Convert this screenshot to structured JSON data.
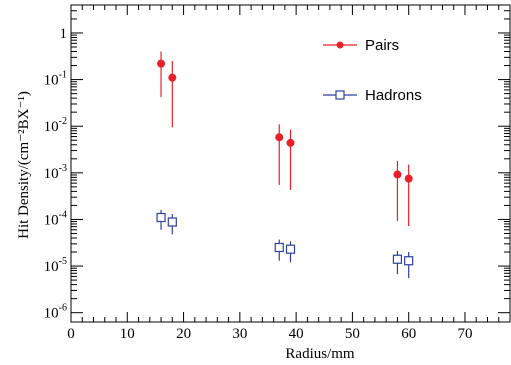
{
  "chart_data": {
    "type": "scatter",
    "xlabel": "Radius/mm",
    "ylabel": "Hit Density/(cm⁻²BX⁻¹)",
    "xlim": [
      0,
      78
    ],
    "ylim_log10": [
      -6.2,
      0.6
    ],
    "y_scale": "log",
    "grid": false,
    "legend_position": "top-right",
    "x_ticks": [
      0,
      10,
      20,
      30,
      40,
      50,
      60,
      70
    ],
    "y_ticks": [
      {
        "value": 1,
        "base": "1",
        "exp": ""
      },
      {
        "value": 0.1,
        "base": "10",
        "exp": "-1"
      },
      {
        "value": 0.01,
        "base": "10",
        "exp": "-2"
      },
      {
        "value": 0.001,
        "base": "10",
        "exp": "-3"
      },
      {
        "value": 0.0001,
        "base": "10",
        "exp": "-4"
      },
      {
        "value": 1e-05,
        "base": "10",
        "exp": "-5"
      },
      {
        "value": 1e-06,
        "base": "10",
        "exp": "-6"
      }
    ],
    "series": [
      {
        "name": "Pairs",
        "color": "#e8202a",
        "marker": "filled-circle",
        "points": [
          {
            "x": 16,
            "y": 0.22,
            "ylo": 0.042,
            "yhi": 0.4
          },
          {
            "x": 18,
            "y": 0.11,
            "ylo": 0.0095,
            "yhi": 0.25
          },
          {
            "x": 37,
            "y": 0.0058,
            "ylo": 0.00055,
            "yhi": 0.011
          },
          {
            "x": 39,
            "y": 0.0044,
            "ylo": 0.00043,
            "yhi": 0.0085
          },
          {
            "x": 58,
            "y": 0.00092,
            "ylo": 9.2e-05,
            "yhi": 0.0018
          },
          {
            "x": 60,
            "y": 0.00075,
            "ylo": 7.2e-05,
            "yhi": 0.0015
          }
        ]
      },
      {
        "name": "Hadrons",
        "color": "#2e3fa0",
        "marker": "open-square",
        "points": [
          {
            "x": 16,
            "y": 0.00011,
            "ylo": 6e-05,
            "yhi": 0.00016
          },
          {
            "x": 18,
            "y": 8.8e-05,
            "ylo": 4.8e-05,
            "yhi": 0.00013
          },
          {
            "x": 37,
            "y": 2.5e-05,
            "ylo": 1.3e-05,
            "yhi": 3.7e-05
          },
          {
            "x": 39,
            "y": 2.3e-05,
            "ylo": 1.2e-05,
            "yhi": 3.4e-05
          },
          {
            "x": 58,
            "y": 1.4e-05,
            "ylo": 6.7e-06,
            "yhi": 2.1e-05
          },
          {
            "x": 60,
            "y": 1.3e-05,
            "ylo": 5.5e-06,
            "yhi": 2e-05
          }
        ]
      }
    ]
  }
}
